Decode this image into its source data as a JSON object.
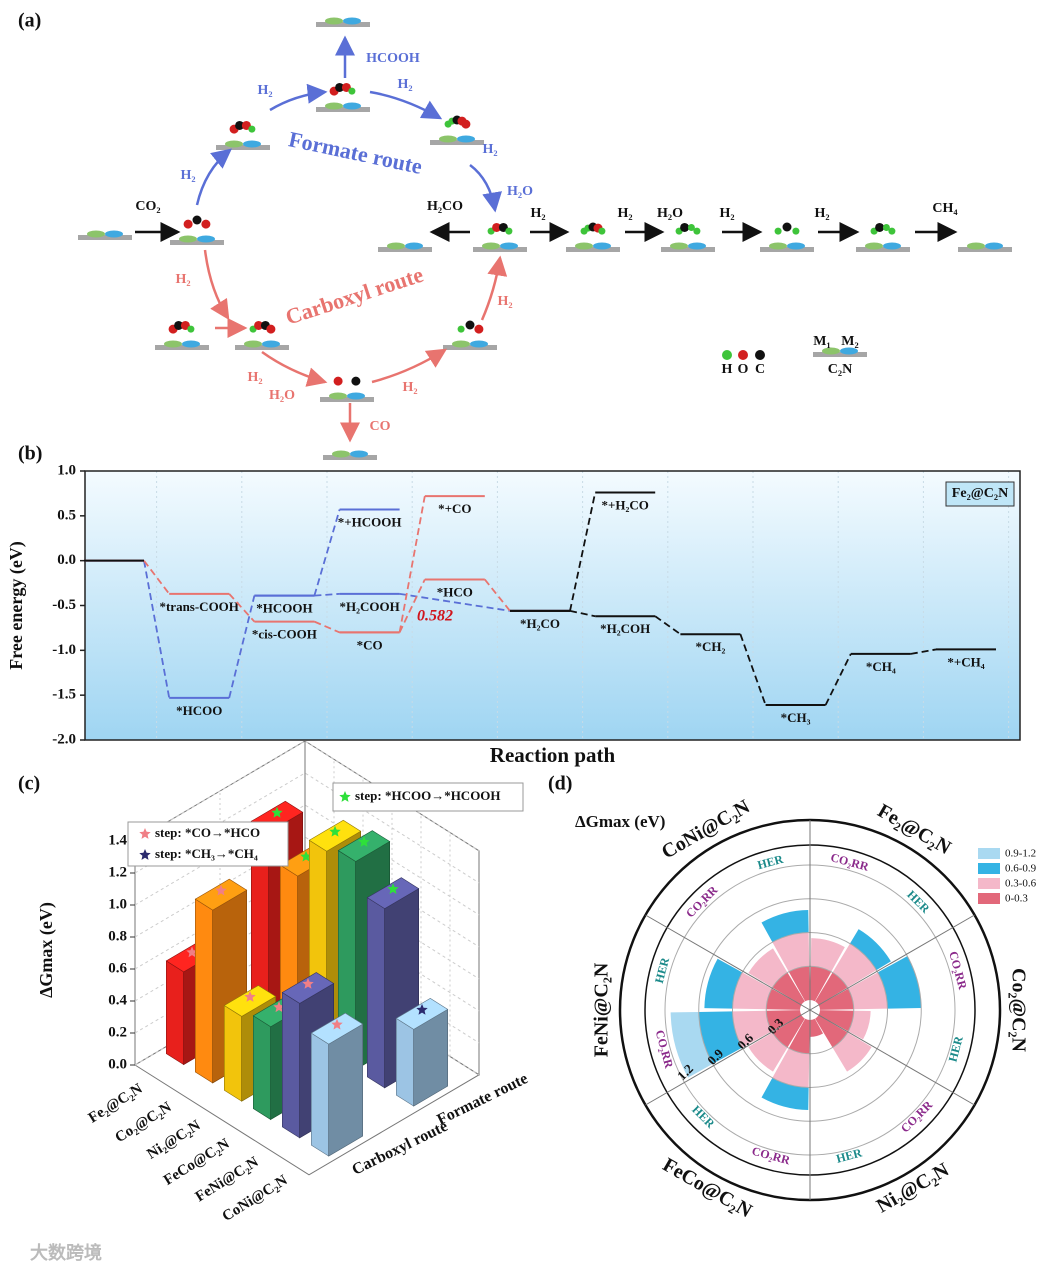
{
  "panel_labels": [
    "(a)",
    "(b)",
    "(c)",
    "(d)"
  ],
  "diagram": {
    "texts": [
      "CO₂",
      "H₂",
      "H₂",
      "HCOOH",
      "H₂",
      "H₂",
      "H₂O",
      "Formate route",
      "Carboxyl route",
      "H₂",
      "H₂",
      "H₂O",
      "CO",
      "H₂",
      "H₂",
      "H₂CO",
      "H₂",
      "H₂",
      "H₂O",
      "H₂",
      "H₂",
      "CH₄",
      "H",
      "O",
      "C",
      "M₁",
      "M₂",
      "C₂N"
    ]
  },
  "chart_data": [
    {
      "type": "energy",
      "annotation_box": "Fe₂@C₂N",
      "annotation": "0.582",
      "ylabel": "Free energy (eV)",
      "xlabel": "Reaction path",
      "ylim": [
        -2,
        1
      ],
      "yticks": [
        {
          "value": 1,
          "label": "1.0"
        },
        0.5,
        {
          "value": 0,
          "label": "0.0"
        },
        -0.5,
        {
          "value": -1,
          "label": "-1.0"
        },
        -1.5,
        {
          "value": -2,
          "label": "-2.0"
        }
      ],
      "series": [
        {
          "color": "#5a6fd6",
          "x": [
            0,
            1,
            2,
            3,
            5
          ],
          "values": [
            0,
            -1.53,
            -0.39,
            -0.37,
            -0.56
          ],
          "labels": [
            null,
            "*HCOO",
            "*HCOOH",
            "*H₂COOH",
            null
          ]
        },
        {
          "color": "#5a6fd6",
          "x": [
            2,
            3
          ],
          "values": [
            -0.39,
            0.57
          ],
          "labels": [
            null,
            "*+HCOOH"
          ]
        },
        {
          "color": "#e8746f",
          "x": [
            0,
            1,
            2,
            3,
            4,
            5
          ],
          "values": [
            0,
            -0.37,
            -0.68,
            -0.8,
            -0.21,
            -0.56
          ],
          "labels": [
            null,
            "*trans-COOH",
            "*cis-COOH",
            "*CO",
            "*HCO",
            null
          ]
        },
        {
          "color": "#e8746f",
          "x": [
            3,
            4
          ],
          "values": [
            -0.8,
            0.72
          ],
          "labels": [
            null,
            "*+CO"
          ]
        },
        {
          "color": "#111111",
          "x": [
            5,
            6
          ],
          "values": [
            -0.56,
            0.76
          ],
          "labels": [
            null,
            "*+H₂CO"
          ]
        },
        {
          "color": "#111111",
          "x": [
            5,
            6,
            7,
            8,
            9,
            10
          ],
          "values": [
            -0.56,
            -0.62,
            -0.82,
            -1.61,
            -1.04,
            -0.99
          ],
          "labels": [
            "*H₂CO",
            "*H₂COH",
            "*CH₂",
            "*CH₃",
            "*CH₄",
            "*+CH₄"
          ]
        },
        {
          "color": "#111111",
          "x": [
            0
          ],
          "values": [
            0
          ],
          "labels": [
            null
          ]
        }
      ]
    },
    {
      "type": "bar3d",
      "zlabel": "ΔGmax (eV)",
      "categories": [
        "Fe₂@C₂N",
        "Co₂@C₂N",
        "Ni₂@C₂N",
        "FeCo@C₂N",
        "FeNi@C₂N",
        "CoNi@C₂N"
      ],
      "colors": [
        "#e8201c",
        "#ff8a10",
        "#f2c40c",
        "#2e9a5e",
        "#5a5aa0",
        "#9cc4e4"
      ],
      "zlim": [
        0,
        1.4
      ],
      "zticks": [
        {
          "value": 0,
          "label": "0.0"
        },
        0.2,
        0.4,
        0.6,
        0.8,
        {
          "value": 1,
          "label": "1.0"
        },
        1.2,
        1.4
      ],
      "steps": [
        {
          "label": "step: *CO→*HCO",
          "color": "#f07f86"
        },
        {
          "label": "step: *CH₃→*CH₄",
          "color": "#2b2a6e"
        },
        {
          "label": "step: *HCOO→*HCOOH",
          "color": "#2ee03a"
        }
      ],
      "series": [
        {
          "name": "Carboxyl route",
          "values": [
            0.58,
            1.08,
            0.53,
            0.58,
            0.84,
            0.7
          ],
          "steps": [
            0,
            0,
            0,
            0,
            0,
            0
          ]
        },
        {
          "name": "Formate route",
          "values": [
            1.14,
            0.98,
            1.25,
            1.3,
            1.12,
            0.48
          ],
          "steps": [
            2,
            2,
            2,
            2,
            2,
            1
          ]
        }
      ]
    },
    {
      "type": "polar_bar",
      "title": "ΔGmax (eV)",
      "categories": [
        "Fe₂@C₂N",
        "Co₂@C₂N",
        "Ni₂@C₂N",
        "FeCo@C₂N",
        "FeNi@C₂N",
        "CoNi@C₂N"
      ],
      "series": [
        {
          "name": "CO₂RR",
          "color": "#8b2a8b",
          "values": [
            0.55,
            0.9,
            0.55,
            0.8,
            1.15,
            0.55
          ]
        },
        {
          "name": "HER",
          "color": "#1b8a8a",
          "values": [
            0.75,
            0.45,
            0.15,
            0.55,
            0.85,
            0.8
          ]
        }
      ],
      "rlim": [
        0,
        1.2
      ],
      "rticks": [
        0.3,
        0.6,
        0.9,
        1.2
      ],
      "bins": [
        {
          "label": "0.9-1.2",
          "range": [
            0.9,
            1.2
          ],
          "color": "#a9d9f1"
        },
        {
          "label": "0.6-0.9",
          "range": [
            0.6,
            0.9
          ],
          "color": "#34b3e4"
        },
        {
          "label": "0.3-0.6",
          "range": [
            0.3,
            0.6
          ],
          "color": "#f4b8c9"
        },
        {
          "label": "0-0.3",
          "range": [
            0,
            0.3
          ],
          "color": "#e2687a"
        }
      ]
    }
  ],
  "watermark": "大数跨境"
}
